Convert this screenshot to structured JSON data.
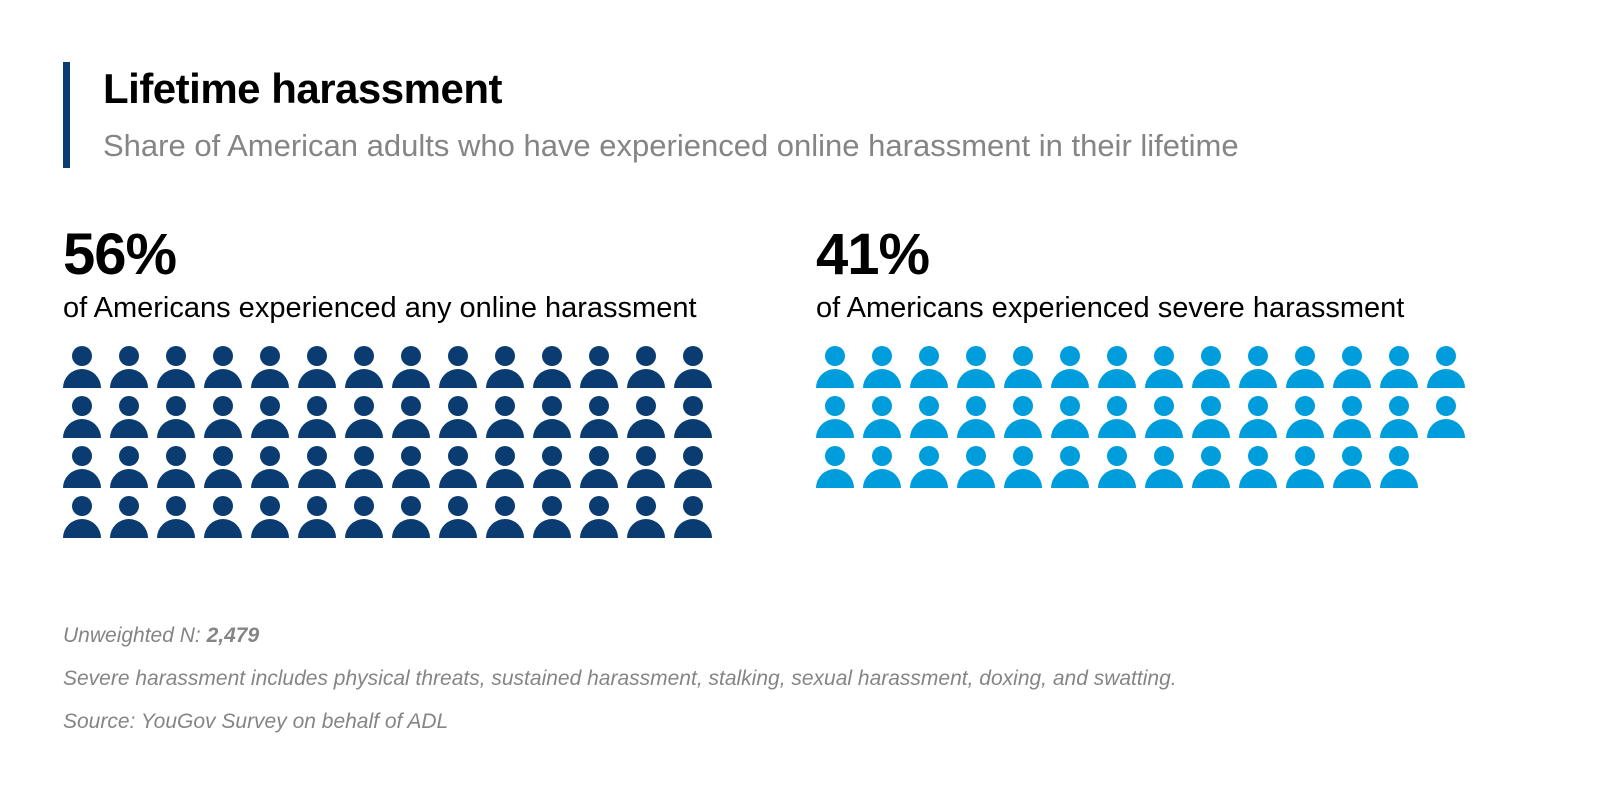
{
  "header": {
    "title": "Lifetime harassment",
    "subtitle": "Share of American adults who have experienced online harassment in their lifetime"
  },
  "colors": {
    "accent_bar": "#0b3c71",
    "any_harassment": "#0b3c71",
    "severe_harassment": "#009ddc"
  },
  "panels": [
    {
      "value_label": "56%",
      "description": "of Americans experienced any online harassment",
      "icon": "person-icon",
      "icon_count": 56,
      "icons_per_row": 14,
      "color": "#0b3c71"
    },
    {
      "value_label": "41%",
      "description": "of Americans experienced severe harassment",
      "icon": "person-icon",
      "icon_count": 41,
      "icons_per_row": 14,
      "color": "#009ddc"
    }
  ],
  "footer": {
    "n_label": "Unweighted N:",
    "n_value": "2,479",
    "note": "Severe harassment includes physical threats, sustained harassment, stalking, sexual harassment, doxing, and swatting.",
    "source": "Source: YouGov Survey on behalf of ADL"
  },
  "chart_data": {
    "type": "pictogram",
    "title": "Lifetime harassment",
    "subtitle": "Share of American adults who have experienced online harassment in their lifetime",
    "categories": [
      "Any online harassment",
      "Severe harassment"
    ],
    "values": [
      56,
      41
    ],
    "unit": "%",
    "icons_per_unit": 1,
    "icons_per_row": 14,
    "colors": [
      "#0b3c71",
      "#009ddc"
    ],
    "legend": [],
    "grid": false
  }
}
